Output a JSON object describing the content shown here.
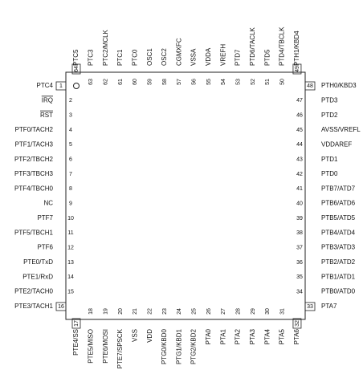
{
  "pins": {
    "left": [
      {
        "number": 1,
        "label": "PTC4"
      },
      {
        "number": 2,
        "label": "IRQ"
      },
      {
        "number": 3,
        "label": "RST"
      },
      {
        "number": 4,
        "label": "PTF0/TACH2"
      },
      {
        "number": 5,
        "label": "PTF1/TACH3"
      },
      {
        "number": 6,
        "label": "PTF2/TBCH2"
      },
      {
        "number": 7,
        "label": "PTF3/TBCH3"
      },
      {
        "number": 8,
        "label": "PTF4/TBCH0"
      },
      {
        "number": 9,
        "label": "NC"
      },
      {
        "number": 10,
        "label": "PTF7"
      },
      {
        "number": 11,
        "label": "PTF5/TBCH1"
      },
      {
        "number": 12,
        "label": "PTF6"
      },
      {
        "number": 13,
        "label": "PTE0/TxD"
      },
      {
        "number": 14,
        "label": "PTE1/RxD"
      },
      {
        "number": 15,
        "label": "PTE2/TACH0"
      },
      {
        "number": 16,
        "label": "PTE3/TACH1"
      }
    ],
    "bottom": [
      {
        "number": 17,
        "label": "PTE4/SS"
      },
      {
        "number": 18,
        "label": "PTE5/MISO"
      },
      {
        "number": 19,
        "label": "PTE6/MOSI"
      },
      {
        "number": 20,
        "label": "PTE7/SPSCK"
      },
      {
        "number": 21,
        "label": "VSS"
      },
      {
        "number": 22,
        "label": "VDD"
      },
      {
        "number": 23,
        "label": "PTG0/KBD0"
      },
      {
        "number": 24,
        "label": "PTG1/KBD1"
      },
      {
        "number": 25,
        "label": "PTG2/KBD2"
      },
      {
        "number": 26,
        "label": "PTA0"
      },
      {
        "number": 27,
        "label": "PTA1"
      },
      {
        "number": 28,
        "label": "PTA2"
      },
      {
        "number": 29,
        "label": "PTA3"
      },
      {
        "number": 30,
        "label": "PTA4"
      },
      {
        "number": 31,
        "label": "PTA5"
      },
      {
        "number": 32,
        "label": "PTA6"
      }
    ],
    "right": [
      {
        "number": 33,
        "label": "PTA7"
      },
      {
        "number": 34,
        "label": "PTB0/ATD0"
      },
      {
        "number": 35,
        "label": "PTB1/ATD1"
      },
      {
        "number": 36,
        "label": "PTB2/ATD2"
      },
      {
        "number": 37,
        "label": "PTB3/ATD3"
      },
      {
        "number": 38,
        "label": "PTB4/ATD4"
      },
      {
        "number": 39,
        "label": "PTB5/ATD5"
      },
      {
        "number": 40,
        "label": "PTB6/ATD6"
      },
      {
        "number": 41,
        "label": "PTB7/ATD7"
      },
      {
        "number": 42,
        "label": "PTD0"
      },
      {
        "number": 43,
        "label": "PTD1"
      },
      {
        "number": 44,
        "label": "VDDAREF"
      },
      {
        "number": 45,
        "label": "AVSS/VREFL"
      },
      {
        "number": 46,
        "label": "PTD2"
      },
      {
        "number": 47,
        "label": "PTD3"
      },
      {
        "number": 48,
        "label": "PTH0/KBD3"
      }
    ],
    "top": [
      {
        "number": 49,
        "label": "PTH1/KBD4"
      },
      {
        "number": 50,
        "label": "PTD4/TBCLK"
      },
      {
        "number": 51,
        "label": "PTD5"
      },
      {
        "number": 52,
        "label": "PTD6/TACLK"
      },
      {
        "number": 53,
        "label": "PTD7"
      },
      {
        "number": 54,
        "label": "VREFH"
      },
      {
        "number": 55,
        "label": "VDDA"
      },
      {
        "number": 56,
        "label": "VSSA"
      },
      {
        "number": 57,
        "label": "CGMXFC"
      },
      {
        "number": 58,
        "label": "OSC2"
      },
      {
        "number": 59,
        "label": "OSC1"
      },
      {
        "number": 60,
        "label": "PTC0"
      },
      {
        "number": 61,
        "label": "PTC1"
      },
      {
        "number": 62,
        "label": "PTC2/MCLK"
      },
      {
        "number": 63,
        "label": "PTC3"
      },
      {
        "number": 64,
        "label": "PTC5"
      }
    ]
  }
}
